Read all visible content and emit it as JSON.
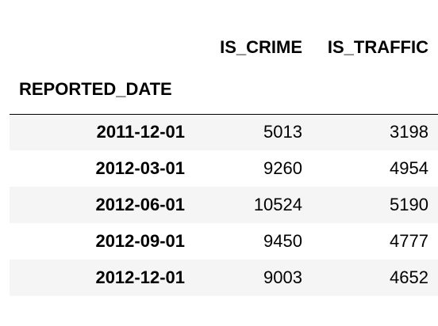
{
  "table": {
    "columns": [
      "IS_CRIME",
      "IS_TRAFFIC"
    ],
    "index_name": "REPORTED_DATE",
    "rows": [
      {
        "index": "2011-12-01",
        "is_crime": "5013",
        "is_traffic": "3198"
      },
      {
        "index": "2012-03-01",
        "is_crime": "9260",
        "is_traffic": "4954"
      },
      {
        "index": "2012-06-01",
        "is_crime": "10524",
        "is_traffic": "5190"
      },
      {
        "index": "2012-09-01",
        "is_crime": "9450",
        "is_traffic": "4777"
      },
      {
        "index": "2012-12-01",
        "is_crime": "9003",
        "is_traffic": "4652"
      }
    ]
  },
  "colors": {
    "stripe": "#f5f5f5",
    "background": "#ffffff",
    "text": "#000000",
    "rule": "#000000"
  }
}
